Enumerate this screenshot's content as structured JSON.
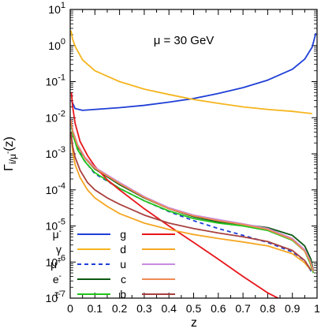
{
  "chart_data": {
    "type": "line",
    "annotation": "μ = 30 GeV",
    "xlabel": "z",
    "ylabel": "Γ_{i/μ⁻}(z)",
    "xlim": [
      0,
      1
    ],
    "ylim": [
      1e-07,
      10
    ],
    "yscale": "log",
    "x_ticks": [
      "0",
      "0.1",
      "0.2",
      "0.3",
      "0.4",
      "0.5",
      "0.6",
      "0.7",
      "0.8",
      "0.9",
      "1"
    ],
    "y_ticks": [
      {
        "base": "10",
        "exp": "1"
      },
      {
        "base": "10",
        "exp": "0"
      },
      {
        "base": "10",
        "exp": "-1"
      },
      {
        "base": "10",
        "exp": "-2"
      },
      {
        "base": "10",
        "exp": "-3"
      },
      {
        "base": "10",
        "exp": "-4"
      },
      {
        "base": "10",
        "exp": "-5"
      },
      {
        "base": "10",
        "exp": "-6"
      },
      {
        "base": "10",
        "exp": "-7"
      }
    ],
    "legend_placement": "bottom-left",
    "series": [
      {
        "name": "μ⁻",
        "label_base": "μ",
        "label_sup": "-",
        "color": "#1f3fd6",
        "dash": "solid",
        "legend_col": 0,
        "legend_row": 0,
        "x": [
          0.005,
          0.02,
          0.05,
          0.1,
          0.2,
          0.3,
          0.4,
          0.5,
          0.6,
          0.7,
          0.8,
          0.9,
          0.95,
          0.98,
          0.995
        ],
        "y": [
          0.03,
          0.018,
          0.016,
          0.017,
          0.019,
          0.022,
          0.027,
          0.034,
          0.047,
          0.068,
          0.11,
          0.22,
          0.42,
          0.9,
          2.2
        ]
      },
      {
        "name": "γ",
        "label_base": "γ",
        "label_sup": "",
        "color": "#f5b51e",
        "dash": "solid",
        "legend_col": 0,
        "legend_row": 1,
        "x": [
          0.003,
          0.01,
          0.02,
          0.05,
          0.1,
          0.2,
          0.3,
          0.4,
          0.5,
          0.6,
          0.7,
          0.8,
          0.9,
          0.98
        ],
        "y": [
          2.6,
          1.5,
          0.95,
          0.4,
          0.2,
          0.1,
          0.062,
          0.044,
          0.032,
          0.025,
          0.02,
          0.017,
          0.015,
          0.013
        ]
      },
      {
        "name": "μ⁺",
        "label_base": "μ",
        "label_sup": "+",
        "color": "#1f3fd6",
        "dash": "dashed",
        "legend_col": 0,
        "legend_row": 2,
        "x": [
          0.005,
          0.02,
          0.05,
          0.1,
          0.2,
          0.3,
          0.4,
          0.5,
          0.6,
          0.7,
          0.8,
          0.9,
          0.95,
          0.98
        ],
        "y": [
          0.006,
          0.0025,
          0.00075,
          0.00028,
          0.00011,
          5e-05,
          2.5e-05,
          1.4e-05,
          8.5e-06,
          5.5e-06,
          3.5e-06,
          1.9e-06,
          1.1e-06,
          5e-07
        ]
      },
      {
        "name": "e⁻",
        "label_base": "e",
        "label_sup": "-",
        "color": "#0a5a12",
        "dash": "solid",
        "legend_col": 0,
        "legend_row": 3,
        "x": [
          0.003,
          0.01,
          0.03,
          0.06,
          0.1,
          0.2,
          0.3,
          0.4,
          0.5,
          0.6,
          0.7,
          0.8,
          0.9,
          0.95,
          0.975,
          0.985
        ],
        "y": [
          0.009,
          0.004,
          0.0016,
          0.00075,
          0.00038,
          0.00014,
          6e-05,
          3e-05,
          1.8e-05,
          1.3e-05,
          1.1e-05,
          9e-06,
          5.5e-06,
          2.8e-06,
          1.2e-06,
          6e-07
        ]
      },
      {
        "name": "τ⁻",
        "label_base": "τ",
        "label_sup": "-",
        "color": "#22c41a",
        "dash": "solid",
        "legend_col": 0,
        "legend_row": 4,
        "x": [
          0.003,
          0.01,
          0.03,
          0.06,
          0.1,
          0.2,
          0.3,
          0.4,
          0.5,
          0.6,
          0.7,
          0.8,
          0.9,
          0.95,
          0.97,
          0.985
        ],
        "y": [
          0.008,
          0.0035,
          0.0013,
          0.0006,
          0.0003,
          0.00011,
          5e-05,
          2.6e-05,
          1.6e-05,
          1.2e-05,
          1e-05,
          7.5e-06,
          4e-06,
          2e-06,
          1e-06,
          5e-07
        ]
      },
      {
        "name": "g",
        "label_base": "g",
        "label_sup": "",
        "color": "#e8161a",
        "dash": "solid",
        "legend_col": 1,
        "legend_row": 0,
        "x": [
          0.005,
          0.01,
          0.02,
          0.04,
          0.07,
          0.1,
          0.15,
          0.2,
          0.3,
          0.4,
          0.5,
          0.6,
          0.7,
          0.8,
          0.87
        ],
        "y": [
          0.05,
          0.02,
          0.007,
          0.0022,
          0.0009,
          0.00045,
          0.00019,
          0.0001,
          3e-05,
          1e-05,
          3.5e-06,
          1.2e-06,
          4e-07,
          1.4e-07,
          8e-08
        ]
      },
      {
        "name": "d",
        "label_base": "d",
        "label_sup": "",
        "color": "#f5a623",
        "dash": "solid",
        "legend_col": 1,
        "legend_row": 1,
        "x": [
          0.003,
          0.01,
          0.02,
          0.04,
          0.07,
          0.1,
          0.15,
          0.2,
          0.3,
          0.4,
          0.5,
          0.6,
          0.7,
          0.8,
          0.9,
          0.95,
          0.975
        ],
        "y": [
          0.0035,
          0.0012,
          0.0005,
          0.00022,
          0.0001,
          6e-05,
          3.5e-05,
          2.2e-05,
          1.2e-05,
          8e-06,
          5.8e-06,
          4.5e-06,
          3.6e-06,
          2.8e-06,
          1.7e-06,
          9.5e-07,
          6e-07
        ]
      },
      {
        "name": "u",
        "label_base": "u",
        "label_sup": "",
        "color": "#c88be0",
        "dash": "solid",
        "legend_col": 1,
        "legend_row": 2,
        "x": [
          0.003,
          0.01,
          0.03,
          0.06,
          0.1,
          0.2,
          0.3,
          0.4,
          0.5,
          0.6,
          0.7,
          0.8,
          0.9,
          0.95,
          0.97,
          0.985
        ],
        "y": [
          0.009,
          0.0045,
          0.0018,
          0.0008,
          0.00042,
          0.00016,
          6.5e-05,
          3.2e-05,
          2e-05,
          1.5e-05,
          1.15e-05,
          8.5e-06,
          4.5e-06,
          2.2e-06,
          1.2e-06,
          6e-07
        ]
      },
      {
        "name": "c",
        "label_base": "c",
        "label_sup": "",
        "color": "#f08a55",
        "dash": "solid",
        "legend_col": 1,
        "legend_row": 3,
        "x": [
          0.003,
          0.01,
          0.03,
          0.06,
          0.1,
          0.2,
          0.3,
          0.4,
          0.5,
          0.6,
          0.7,
          0.8,
          0.9,
          0.95,
          0.97,
          0.985
        ],
        "y": [
          0.0085,
          0.0042,
          0.0017,
          0.00075,
          0.0004,
          0.00015,
          6.2e-05,
          3e-05,
          1.9e-05,
          1.4e-05,
          1.1e-05,
          8e-06,
          4.2e-06,
          2e-06,
          1.1e-06,
          5.5e-07
        ]
      },
      {
        "name": "b",
        "label_base": "b",
        "label_sup": "",
        "color": "#a8403e",
        "dash": "solid",
        "legend_col": 1,
        "legend_row": 4,
        "x": [
          0.003,
          0.01,
          0.02,
          0.04,
          0.07,
          0.1,
          0.15,
          0.2,
          0.3,
          0.4,
          0.5,
          0.6,
          0.7,
          0.8,
          0.9,
          0.95,
          0.975
        ],
        "y": [
          0.004,
          0.0016,
          0.0008,
          0.00035,
          0.00016,
          0.0001,
          6e-05,
          4e-05,
          2e-05,
          1.2e-05,
          8.5e-06,
          6.4e-06,
          5e-06,
          3.7e-06,
          2.1e-06,
          1.1e-06,
          6e-07
        ]
      }
    ]
  }
}
